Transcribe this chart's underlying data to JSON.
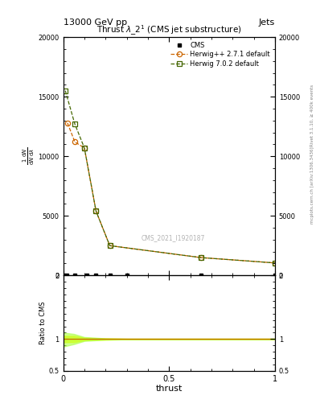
{
  "title_top": "13000 GeV pp",
  "title_top_right": "Jets",
  "plot_title": "Thrust $\\lambda$_2$^1$ (CMS jet substructure)",
  "watermark": "CMS_2021_I1920187",
  "right_label_top": "Rivet 3.1.10, ≥ 400k events",
  "right_label_bottom": "mcplots.cern.ch [arXiv:1306.3436]",
  "ylabel_ratio": "Ratio to CMS",
  "xlabel": "thrust",
  "herwig_x": [
    0.02,
    0.055,
    0.1,
    0.155,
    0.22,
    0.65,
    1.0
  ],
  "herwig_y": [
    12800,
    11200,
    10700,
    5400,
    2500,
    1500,
    1050
  ],
  "herwig7_x": [
    0.01,
    0.055,
    0.1,
    0.155,
    0.22,
    0.65,
    1.0
  ],
  "herwig7_y": [
    15500,
    12700,
    10700,
    5400,
    2500,
    1500,
    1050
  ],
  "cms_x": [
    0.0,
    0.018,
    0.055,
    0.11,
    0.155,
    0.22,
    0.3,
    0.65,
    1.0
  ],
  "cms_y": [
    0,
    0,
    0,
    0,
    0,
    0,
    0,
    0,
    0
  ],
  "herwig_color": "#cc6600",
  "herwig7_color": "#446600",
  "cms_color": "#000000",
  "ylim_main": [
    0,
    20000
  ],
  "ylim_ratio": [
    0.5,
    2.0
  ],
  "xlim": [
    0.0,
    1.0
  ],
  "ratio_x": [
    0.0,
    0.05,
    0.1,
    0.2,
    0.3,
    0.65,
    1.0
  ],
  "ratio_hw_upper": [
    1.05,
    1.05,
    1.02,
    1.01,
    1.005,
    1.005,
    1.005
  ],
  "ratio_hw_lower": [
    0.95,
    0.95,
    0.98,
    0.99,
    0.995,
    0.995,
    0.995
  ],
  "ratio_hw7_upper": [
    1.1,
    1.08,
    1.03,
    1.01,
    1.005,
    1.005,
    1.005
  ],
  "ratio_hw7_lower": [
    0.88,
    0.92,
    0.97,
    0.99,
    0.995,
    0.995,
    0.995
  ],
  "bg_color": "#ffffff",
  "yticks_main": [
    0,
    5000,
    10000,
    15000,
    20000
  ],
  "ytick_labels_main": [
    "0",
    "5000",
    "10000",
    "15000",
    "20000"
  ],
  "yticks_ratio": [
    0.5,
    1.0,
    2.0
  ],
  "ytick_labels_ratio": [
    "0.5",
    "1",
    "2"
  ]
}
